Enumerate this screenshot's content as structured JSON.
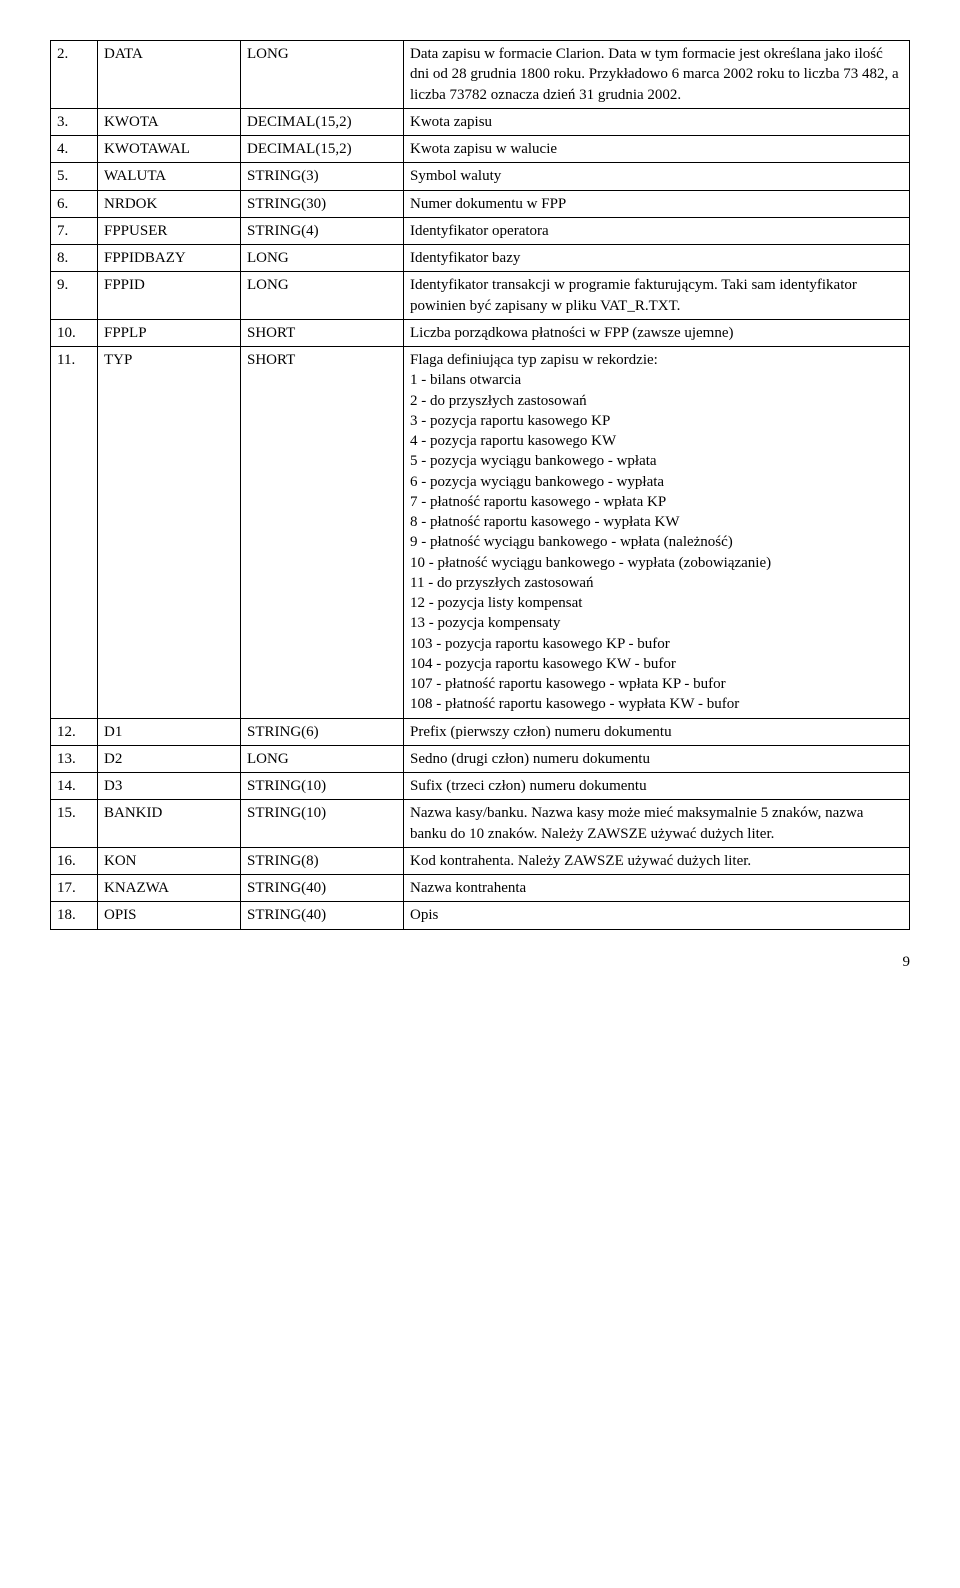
{
  "rows": [
    {
      "n": "2.",
      "name": "DATA",
      "type": "LONG",
      "desc": "Data zapisu w formacie Clarion. Data w tym formacie jest określana jako ilość dni od 28 grudnia 1800 roku. Przykładowo 6 marca 2002 roku to liczba 73 482, a liczba 73782 oznacza dzień 31 grudnia 2002."
    },
    {
      "n": "3.",
      "name": "KWOTA",
      "type": "DECIMAL(15,2)",
      "desc": "Kwota zapisu"
    },
    {
      "n": "4.",
      "name": "KWOTAWAL",
      "type": "DECIMAL(15,2)",
      "desc": "Kwota zapisu w walucie"
    },
    {
      "n": "5.",
      "name": "WALUTA",
      "type": "STRING(3)",
      "desc": "Symbol waluty"
    },
    {
      "n": "6.",
      "name": "NRDOK",
      "type": "STRING(30)",
      "desc": "Numer dokumentu w FPP"
    },
    {
      "n": "7.",
      "name": "FPPUSER",
      "type": "STRING(4)",
      "desc": "Identyfikator operatora"
    },
    {
      "n": "8.",
      "name": "FPPIDBAZY",
      "type": "LONG",
      "desc": "Identyfikator bazy"
    },
    {
      "n": "9.",
      "name": "FPPID",
      "type": "LONG",
      "desc": "Identyfikator transakcji w programie fakturującym. Taki sam identyfikator powinien być zapisany w pliku VAT_R.TXT."
    },
    {
      "n": "10.",
      "name": "FPPLP",
      "type": "SHORT",
      "desc": "Liczba porządkowa płatności w FPP (zawsze ujemne)"
    },
    {
      "n": "11.",
      "name": "TYP",
      "type": "SHORT",
      "desc": "Flaga definiująca typ zapisu w rekordzie:\n1 - bilans otwarcia\n2 - do przyszłych zastosowań\n3 - pozycja raportu kasowego KP\n4 - pozycja raportu kasowego KW\n5 - pozycja wyciągu bankowego - wpłata\n6 - pozycja wyciągu bankowego - wypłata\n7 - płatność raportu kasowego - wpłata KP\n8 - płatność raportu kasowego - wypłata KW\n9 - płatność wyciągu bankowego - wpłata (należność)\n10 - płatność wyciągu bankowego - wypłata (zobowiązanie)\n11 - do przyszłych zastosowań\n12 - pozycja listy kompensat\n13 - pozycja kompensaty\n103 - pozycja raportu kasowego KP - bufor\n104 - pozycja raportu kasowego KW - bufor\n107 - płatność raportu kasowego - wpłata KP - bufor\n108 - płatność raportu kasowego - wypłata KW - bufor"
    },
    {
      "n": "12.",
      "name": "D1",
      "type": "STRING(6)",
      "desc": "Prefix (pierwszy człon) numeru dokumentu"
    },
    {
      "n": "13.",
      "name": "D2",
      "type": "LONG",
      "desc": "Sedno (drugi człon) numeru dokumentu"
    },
    {
      "n": "14.",
      "name": "D3",
      "type": "STRING(10)",
      "desc": "Sufix (trzeci człon) numeru dokumentu"
    },
    {
      "n": "15.",
      "name": "BANKID",
      "type": "STRING(10)",
      "desc": "Nazwa kasy/banku. Nazwa kasy może mieć maksymalnie 5 znaków, nazwa banku do 10 znaków. Należy ZAWSZE używać dużych liter."
    },
    {
      "n": "16.",
      "name": "KON",
      "type": "STRING(8)",
      "desc": "Kod kontrahenta. Należy ZAWSZE używać dużych liter."
    },
    {
      "n": "17.",
      "name": "KNAZWA",
      "type": "STRING(40)",
      "desc": "Nazwa kontrahenta"
    },
    {
      "n": "18.",
      "name": "OPIS",
      "type": "STRING(40)",
      "desc": "Opis"
    }
  ],
  "page_number": "9"
}
